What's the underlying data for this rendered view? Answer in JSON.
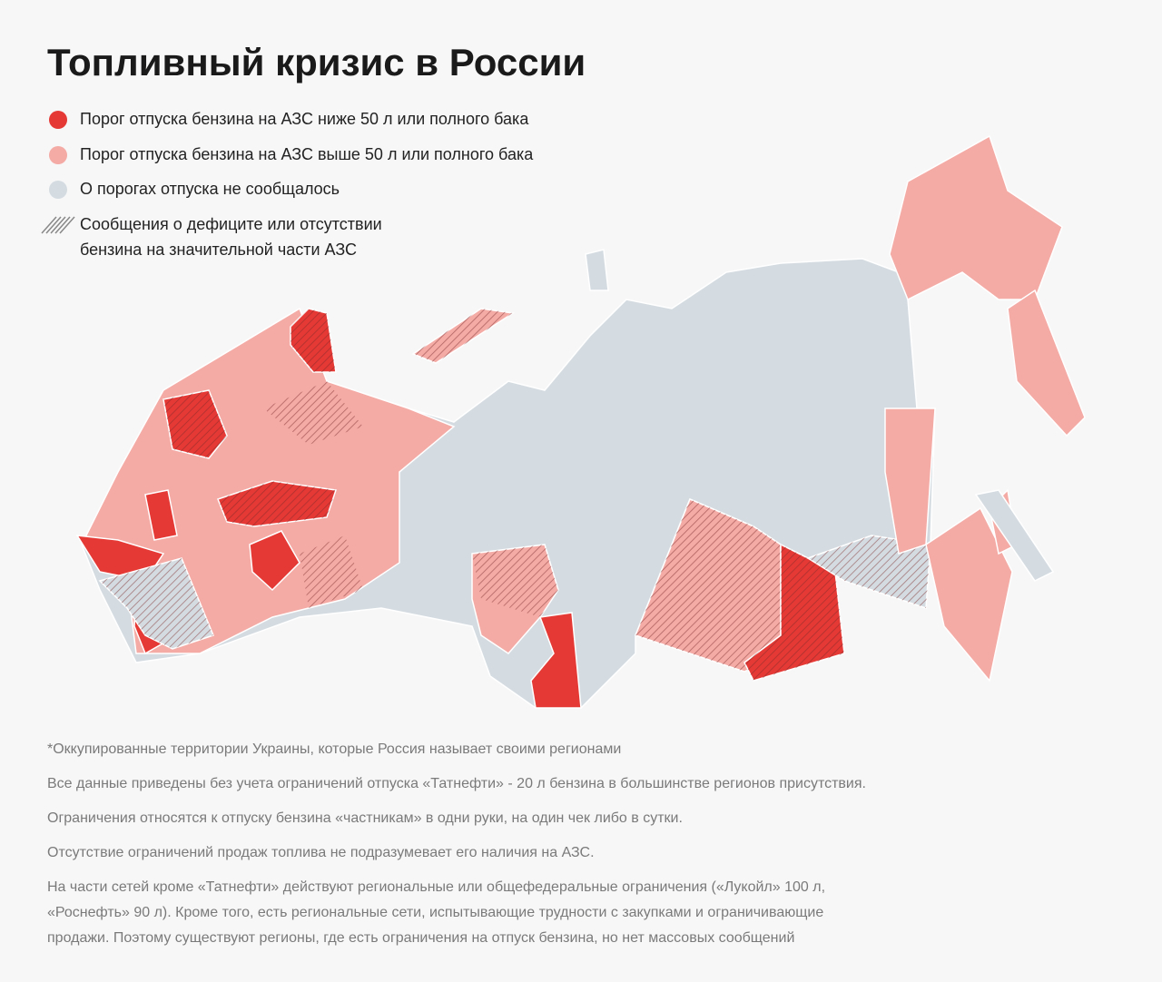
{
  "title": "Топливный кризис в России",
  "legend": [
    {
      "lines": [
        "Порог отпуска бензина на АЗС ниже 50 л или полного бака"
      ],
      "color": "#e53935"
    },
    {
      "lines": [
        " Порог отпуска бензина на АЗС выше 50 л или полного бака"
      ],
      "color": "#f4aaa5"
    },
    {
      "lines": [
        "О порогах отпуска не сообщалось"
      ],
      "color": "#d5dce1"
    },
    {
      "lines": [
        "Сообщения о дефиците или отсутствии",
        "бензина на значительной части АЗС"
      ],
      "color": "#888888",
      "hatched": true
    }
  ],
  "notes": [
    [
      "*Оккупированные территории Украины, которые Россия называет своими регионами"
    ],
    [
      "Все данные приведены без учета ограничений отпуска «Татнефти» - 20 л бензина в большинстве регионов присутствия."
    ],
    [
      "Ограничения относятся к отпуску бензина «частникам» в одни руки, на один чек либо в сутки."
    ],
    [
      "Отсутствие ограничений продаж топлива не подразумевает его наличия на АЗС."
    ],
    [
      "На части сетей кроме «Татнефти» действуют региональные или общефедеральные ограничения («Лукойл» 100 л,",
      "«Роснефть» 90 л). Кроме того, есть региональные сети, испытывающие трудности с закупками и ограничивающие",
      "продажи. Поэтому существуют регионы, где есть ограничения на отпуск бензина, но нет массовых сообщений"
    ]
  ]
}
